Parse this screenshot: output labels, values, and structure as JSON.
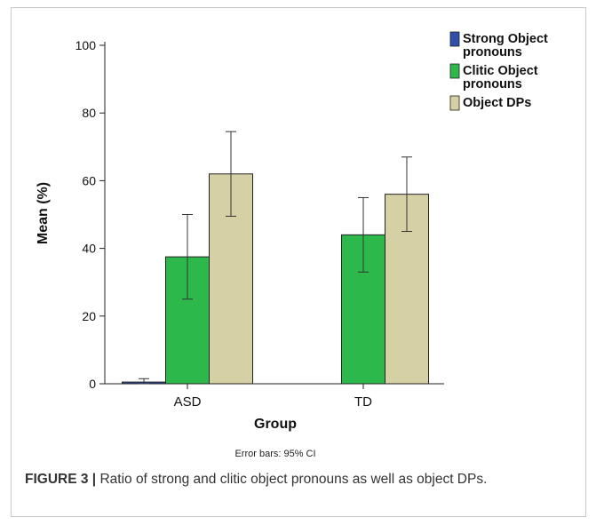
{
  "caption": {
    "label": "FIGURE 3 |",
    "text": " Ratio of strong and clitic object pronouns as well as object DPs."
  },
  "chart_data": {
    "type": "bar",
    "categories": [
      "ASD",
      "TD"
    ],
    "series": [
      {
        "name": "Strong Object pronouns",
        "legend_lines": [
          "Strong Object",
          "pronouns"
        ],
        "values": [
          0.5,
          0
        ],
        "ci_low": [
          0,
          0
        ],
        "ci_high": [
          1.5,
          0
        ],
        "color": "#2f4fa8"
      },
      {
        "name": "Clitic Object pronouns",
        "legend_lines": [
          "Clitic Object",
          "pronouns"
        ],
        "values": [
          37.5,
          44
        ],
        "ci_low": [
          25,
          33
        ],
        "ci_high": [
          50,
          55
        ],
        "color": "#2db84b"
      },
      {
        "name": "Object DPs",
        "legend_lines": [
          "Object DPs"
        ],
        "values": [
          62,
          56
        ],
        "ci_low": [
          49.5,
          45
        ],
        "ci_high": [
          74.5,
          67
        ],
        "color": "#d6d1a4"
      }
    ],
    "xlabel": "Group",
    "ylabel": "Mean (%)",
    "ylim": [
      0,
      100
    ],
    "yticks": [
      0,
      20,
      40,
      60,
      80,
      100
    ],
    "note": "Error bars: 95% CI",
    "legend_position": "top-right",
    "grid": false
  }
}
